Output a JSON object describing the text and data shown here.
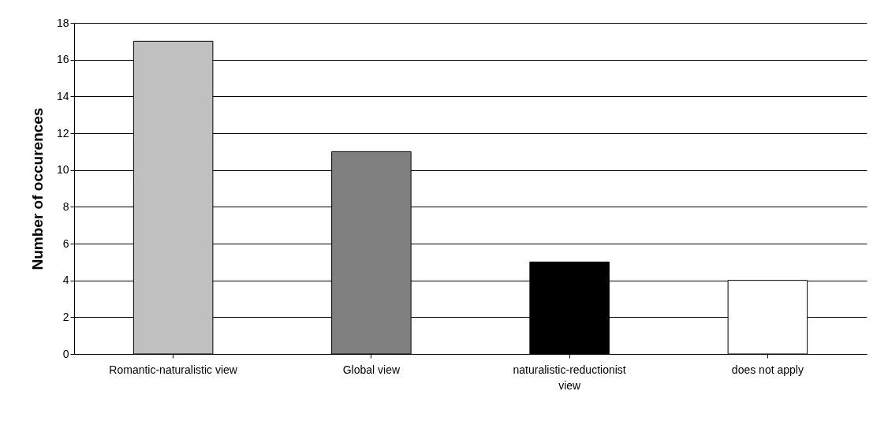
{
  "chart_data": {
    "type": "bar",
    "ylabel": "Number of occurences",
    "categories": [
      "Romantic-naturalistic view",
      "Global view",
      "naturalistic-reductionist view",
      "does not apply"
    ],
    "values": [
      17,
      11,
      5,
      4
    ],
    "colors": [
      "#c0c0c0",
      "#808080",
      "#000000",
      "#ffffff"
    ],
    "ylim": [
      0,
      18
    ],
    "yticks": [
      0,
      2,
      4,
      6,
      8,
      10,
      12,
      14,
      16,
      18
    ],
    "grid": "y"
  }
}
